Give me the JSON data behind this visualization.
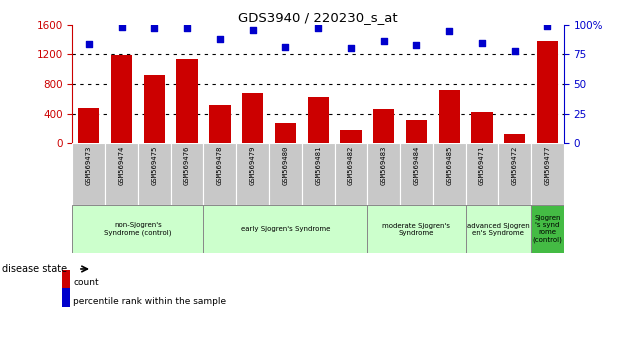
{
  "title": "GDS3940 / 220230_s_at",
  "samples": [
    "GSM569473",
    "GSM569474",
    "GSM569475",
    "GSM569476",
    "GSM569478",
    "GSM569479",
    "GSM569480",
    "GSM569481",
    "GSM569482",
    "GSM569483",
    "GSM569484",
    "GSM569485",
    "GSM569471",
    "GSM569472",
    "GSM569477"
  ],
  "counts": [
    480,
    1190,
    920,
    1140,
    520,
    680,
    270,
    620,
    175,
    460,
    320,
    720,
    420,
    130,
    1380
  ],
  "percentiles": [
    84,
    98,
    97,
    97,
    88,
    96,
    81,
    97,
    80,
    86,
    83,
    95,
    85,
    78,
    99
  ],
  "ylim_left": [
    0,
    1600
  ],
  "ylim_right": [
    0,
    100
  ],
  "yticks_left": [
    0,
    400,
    800,
    1200,
    1600
  ],
  "yticks_right": [
    0,
    25,
    50,
    75,
    100
  ],
  "bar_color": "#cc0000",
  "dot_color": "#0000cc",
  "groups": [
    {
      "label": "non-Sjogren's\nSyndrome (control)",
      "start": 0,
      "end": 4,
      "color": "#ccffcc"
    },
    {
      "label": "early Sjogren's Syndrome",
      "start": 4,
      "end": 9,
      "color": "#ccffcc"
    },
    {
      "label": "moderate Sjogren's\nSyndrome",
      "start": 9,
      "end": 12,
      "color": "#ccffcc"
    },
    {
      "label": "advanced Sjogren\nen's Syndrome",
      "start": 12,
      "end": 14,
      "color": "#ccffcc"
    },
    {
      "label": "Sjogren\n's synd\nrome\n(control)",
      "start": 14,
      "end": 15,
      "color": "#44bb44"
    }
  ],
  "disease_state_label": "disease state",
  "legend_count_label": "count",
  "legend_pct_label": "percentile rank within the sample",
  "bar_color_name": "red",
  "dot_color_name": "blue",
  "tick_bg_color": "#c8c8c8",
  "group_border_color": "#888888",
  "right_ytick_labels": [
    "0",
    "25",
    "50",
    "75",
    "100%"
  ]
}
